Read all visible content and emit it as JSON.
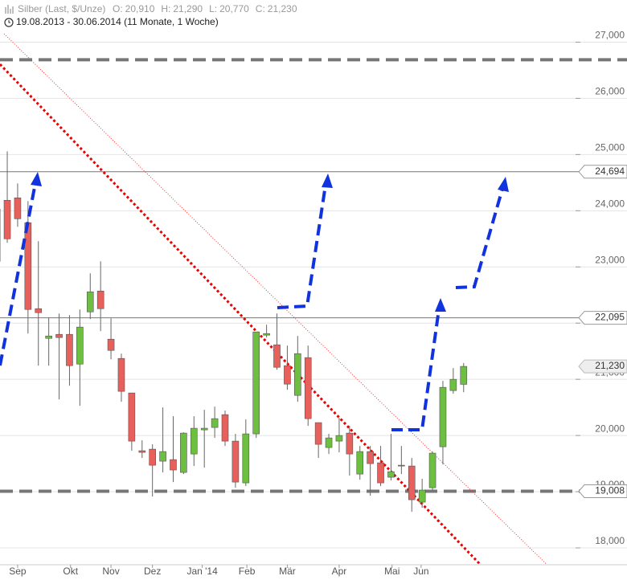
{
  "chart_data": {
    "type": "candlestick",
    "title": "Silber (Last, $/Unze)",
    "quote": [
      {
        "key": "O:",
        "text": "20,910"
      },
      {
        "key": "H:",
        "text": "21,290"
      },
      {
        "key": "L:",
        "text": "20,770"
      },
      {
        "key": "C:",
        "text": "21,230"
      }
    ],
    "subtitle": "19.08.2013 - 30.06.2014 (11 Monate, 1 Woche)",
    "x": [
      0,
      1,
      2,
      3,
      4,
      5,
      6,
      7,
      8,
      9,
      10,
      11,
      12,
      13,
      14,
      15,
      16,
      17,
      18,
      19,
      20,
      21,
      22,
      23,
      24,
      25,
      26,
      27,
      28,
      29,
      30,
      31,
      32,
      33,
      34,
      35,
      36,
      37,
      38,
      39,
      40,
      41,
      42,
      43,
      44,
      45
    ],
    "open": [
      23100,
      24186,
      24229,
      23786,
      22257,
      21729,
      21800,
      21800,
      21271,
      22200,
      22571,
      21714,
      21371,
      20757,
      19729,
      19757,
      19543,
      19571,
      19343,
      19671,
      20100,
      20143,
      20371,
      19900,
      19157,
      20029,
      21786,
      21614,
      21243,
      20714,
      21386,
      20229,
      19786,
      19900,
      20043,
      19314,
      19714,
      19514,
      19257,
      19471,
      19457,
      18814,
      19071,
      19800,
      20800,
      20910
    ],
    "high": [
      24450,
      25057,
      24486,
      24171,
      23457,
      22100,
      22171,
      22143,
      22243,
      22886,
      23100,
      22086,
      21457,
      20757,
      19914,
      19843,
      20500,
      20343,
      20057,
      20343,
      20457,
      20514,
      20443,
      20029,
      20286,
      21843,
      21971,
      22171,
      21600,
      21771,
      21600,
      20229,
      20029,
      20314,
      20171,
      19814,
      19814,
      19814,
      20029,
      19814,
      19600,
      19229,
      19714,
      20971,
      21200,
      21290
    ],
    "low": [
      23100,
      23429,
      23714,
      21814,
      21243,
      21243,
      20643,
      20886,
      20529,
      22071,
      21857,
      21357,
      20600,
      19729,
      19600,
      18914,
      19343,
      19171,
      19314,
      19457,
      19429,
      19957,
      19814,
      19071,
      19100,
      19957,
      21743,
      21171,
      20814,
      20600,
      20171,
      19600,
      19671,
      19700,
      19286,
      19214,
      18929,
      19100,
      19200,
      19314,
      18643,
      18714,
      19029,
      19486,
      20743,
      20770
    ],
    "close": [
      24030,
      23500,
      23857,
      22243,
      22186,
      21771,
      21743,
      21243,
      21929,
      22557,
      22257,
      21514,
      20786,
      19900,
      19700,
      19471,
      19714,
      19386,
      20043,
      20129,
      20129,
      20300,
      19900,
      19171,
      20029,
      21843,
      21814,
      21214,
      20914,
      21457,
      20300,
      19843,
      19957,
      20000,
      19671,
      19714,
      19500,
      19157,
      19357,
      19457,
      18857,
      19029,
      19686,
      20857,
      21000,
      21230
    ],
    "up_color": "#6cbf3f",
    "down_color": "#e8605c",
    "xlim": [
      0.3,
      56.1
    ],
    "xticks": [
      {
        "value": 2.0,
        "label": "Sep"
      },
      {
        "value": 7.1,
        "label": "Okt"
      },
      {
        "value": 11.0,
        "label": "Nov"
      },
      {
        "value": 15.0,
        "label": "Dez"
      },
      {
        "value": 19.8,
        "label": "Jan '14"
      },
      {
        "value": 24.1,
        "label": "Feb"
      },
      {
        "value": 28.0,
        "label": "Mär"
      },
      {
        "value": 33.0,
        "label": "Apr"
      },
      {
        "value": 38.1,
        "label": "Mai"
      },
      {
        "value": 40.9,
        "label": "Jun"
      }
    ],
    "ylim": [
      17700,
      27750
    ],
    "yticks": [
      {
        "value": 18000,
        "label": "18,000"
      },
      {
        "value": 19000,
        "label": "19,000"
      },
      {
        "value": 20000,
        "label": "20,000"
      },
      {
        "value": 21000,
        "label": "21,000"
      },
      {
        "value": 22000,
        "label": "22,000"
      },
      {
        "value": 23000,
        "label": "23,000"
      },
      {
        "value": 24000,
        "label": "24,000"
      },
      {
        "value": 25000,
        "label": "25,000"
      },
      {
        "value": 26000,
        "label": "26,000"
      },
      {
        "value": 27000,
        "label": "27,000"
      }
    ],
    "grid": true,
    "levels": [
      {
        "value": 26686,
        "style": "dashed"
      },
      {
        "value": 24694,
        "label": "24,694",
        "style": "solid"
      },
      {
        "value": 22095,
        "label": "22,095",
        "style": "solid"
      },
      {
        "value": 19008,
        "label": "19,008",
        "style": "dashed"
      }
    ],
    "last_price": {
      "value": 21230,
      "label": "21,230"
    }
  }
}
